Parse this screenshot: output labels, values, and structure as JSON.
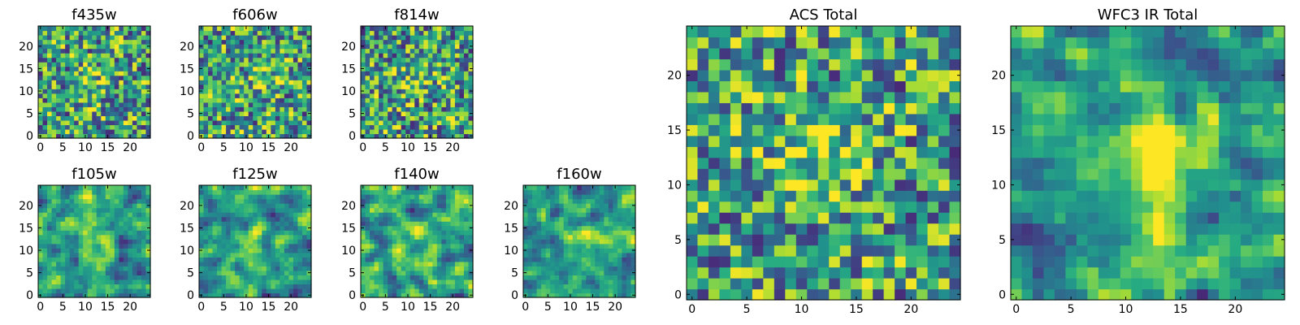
{
  "chart_data": [
    {
      "type": "heatmap",
      "title": "f435w",
      "xticks": [
        0,
        5,
        10,
        15,
        20
      ],
      "yticks": [
        0,
        5,
        10,
        15,
        20
      ],
      "xlim": [
        -0.5,
        24.5
      ],
      "ylim": [
        -0.5,
        24.5
      ],
      "grid_size": 25,
      "colormap": "viridis",
      "smooth": false,
      "bright_center": [
        12,
        12
      ],
      "bright_strength": 0.15
    },
    {
      "type": "heatmap",
      "title": "f606w",
      "xticks": [
        0,
        5,
        10,
        15,
        20
      ],
      "yticks": [
        0,
        5,
        10,
        15,
        20
      ],
      "xlim": [
        -0.5,
        24.5
      ],
      "ylim": [
        -0.5,
        24.5
      ],
      "grid_size": 25,
      "colormap": "viridis",
      "smooth": false,
      "bright_center": [
        12,
        12
      ],
      "bright_strength": 0.1
    },
    {
      "type": "heatmap",
      "title": "f814w",
      "xticks": [
        0,
        5,
        10,
        15,
        20
      ],
      "yticks": [
        0,
        5,
        10,
        15,
        20
      ],
      "xlim": [
        -0.5,
        24.5
      ],
      "ylim": [
        -0.5,
        24.5
      ],
      "grid_size": 25,
      "colormap": "viridis",
      "smooth": false,
      "bright_center": [
        12,
        13
      ],
      "bright_strength": 0.2
    },
    {
      "type": "heatmap",
      "title": "f105w",
      "xticks": [
        0,
        5,
        10,
        15,
        20
      ],
      "yticks": [
        0,
        5,
        10,
        15,
        20
      ],
      "xlim": [
        -0.5,
        24.5
      ],
      "ylim": [
        -0.5,
        24.5
      ],
      "grid_size": 25,
      "colormap": "viridis",
      "smooth": true,
      "bright_center": [
        11,
        12
      ],
      "bright_strength": 0.35
    },
    {
      "type": "heatmap",
      "title": "f125w",
      "xticks": [
        0,
        5,
        10,
        15,
        20
      ],
      "yticks": [
        0,
        5,
        10,
        15,
        20
      ],
      "xlim": [
        -0.5,
        24.5
      ],
      "ylim": [
        -0.5,
        24.5
      ],
      "grid_size": 25,
      "colormap": "viridis",
      "smooth": true,
      "bright_center": [
        11,
        11
      ],
      "bright_strength": 0.3
    },
    {
      "type": "heatmap",
      "title": "f140w",
      "xticks": [
        0,
        5,
        10,
        15,
        20
      ],
      "yticks": [
        0,
        5,
        10,
        15,
        20
      ],
      "xlim": [
        -0.5,
        24.5
      ],
      "ylim": [
        -0.5,
        24.5
      ],
      "grid_size": 25,
      "colormap": "viridis",
      "smooth": true,
      "bright_center": [
        12,
        11
      ],
      "bright_strength": 0.3
    },
    {
      "type": "heatmap",
      "title": "f160w",
      "xticks": [
        0,
        5,
        10,
        15,
        20
      ],
      "yticks": [
        0,
        5,
        10,
        15,
        20
      ],
      "xlim": [
        -0.5,
        24.5
      ],
      "ylim": [
        -0.5,
        24.5
      ],
      "grid_size": 25,
      "colormap": "viridis",
      "smooth": true,
      "bright_center": [
        13,
        11
      ],
      "bright_strength": 0.3
    },
    {
      "type": "heatmap",
      "title": "ACS Total",
      "xticks": [
        0,
        5,
        10,
        15,
        20
      ],
      "yticks": [
        0,
        5,
        10,
        15,
        20
      ],
      "xlim": [
        -0.5,
        24.5
      ],
      "ylim": [
        -0.5,
        24.5
      ],
      "grid_size": 25,
      "colormap": "viridis",
      "smooth": false,
      "bright_center": [
        12,
        12
      ],
      "bright_strength": 0.3
    },
    {
      "type": "heatmap",
      "title": "WFC3 IR Total",
      "xticks": [
        0,
        5,
        10,
        15,
        20
      ],
      "yticks": [
        0,
        5,
        10,
        15,
        20
      ],
      "xlim": [
        -0.5,
        24.5
      ],
      "ylim": [
        -0.5,
        24.5
      ],
      "grid_size": 25,
      "colormap": "viridis",
      "smooth": true,
      "bright_center": [
        12,
        12
      ],
      "bright_strength": 0.55
    }
  ]
}
